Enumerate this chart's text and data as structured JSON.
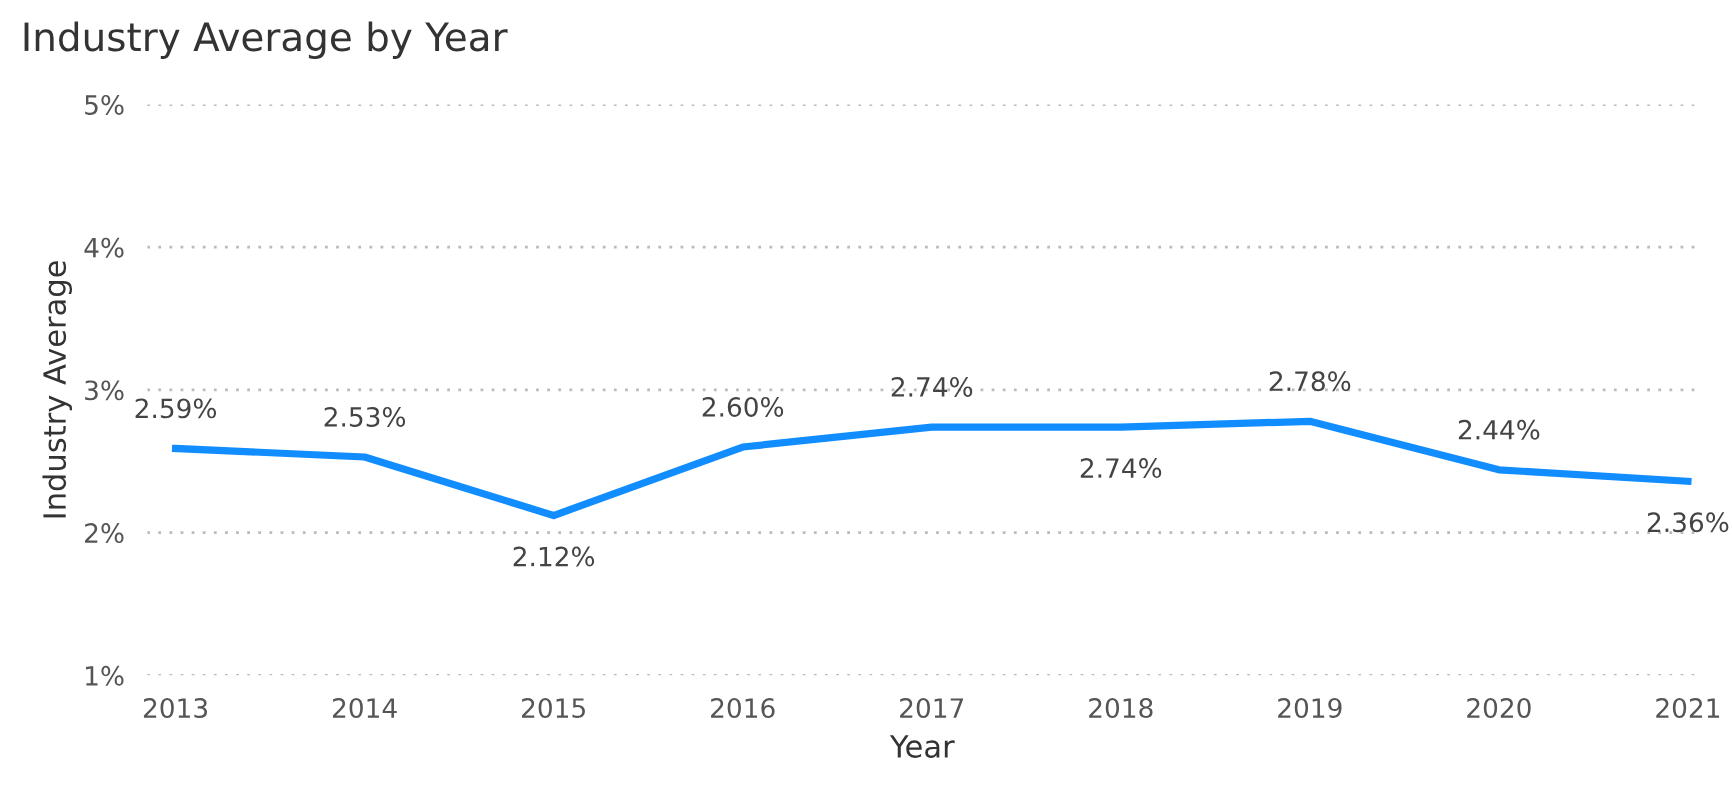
{
  "chart_data": {
    "type": "line",
    "title": "Industry Average by Year",
    "xlabel": "Year",
    "ylabel": "Industry Average",
    "categories": [
      "2013",
      "2014",
      "2015",
      "2016",
      "2017",
      "2018",
      "2019",
      "2020",
      "2021"
    ],
    "series": [
      {
        "color": "#118dff",
        "values": [
          2.59,
          2.53,
          2.12,
          2.6,
          2.74,
          2.74,
          2.78,
          2.44,
          2.36
        ],
        "value_labels": [
          "2.59%",
          "2.53%",
          "2.12%",
          "2.60%",
          "2.74%",
          "2.74%",
          "2.78%",
          "2.44%",
          "2.36%"
        ]
      }
    ],
    "ylim": [
      1,
      5
    ],
    "yticks": [
      {
        "value": 1,
        "label": "1%"
      },
      {
        "value": 2,
        "label": "2%"
      },
      {
        "value": 3,
        "label": "3%"
      },
      {
        "value": 4,
        "label": "4%"
      },
      {
        "value": 5,
        "label": "5%"
      }
    ],
    "grid": "y",
    "marker": "none",
    "line_style": "solid"
  }
}
